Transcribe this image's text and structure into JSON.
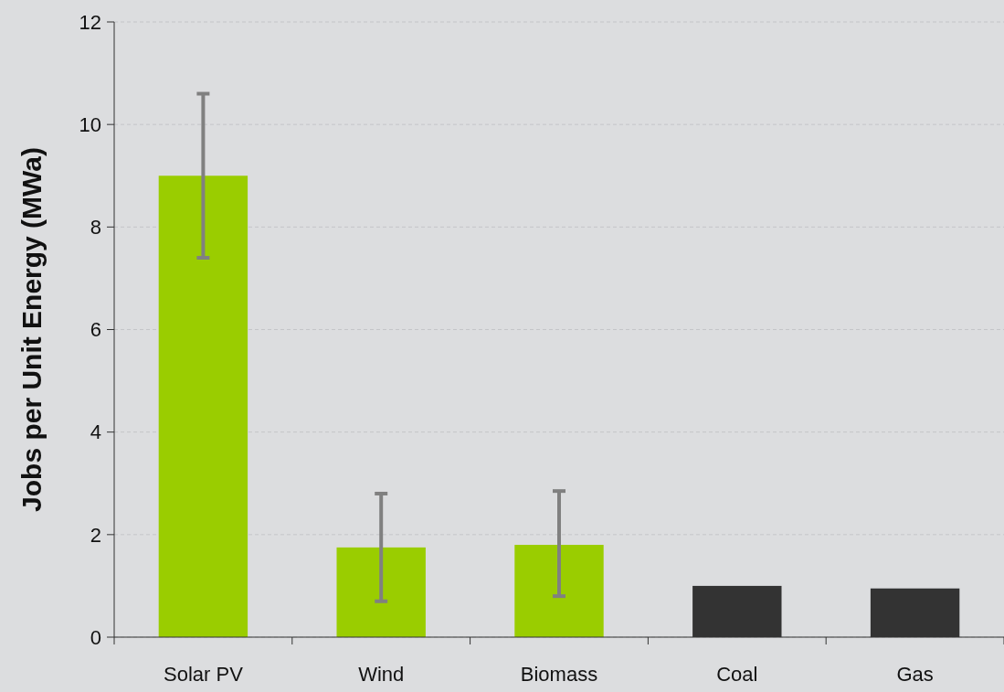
{
  "chart_data": {
    "type": "bar",
    "ylabel": "Jobs per Unit Energy (MWa)",
    "categories": [
      "Solar PV",
      "Wind",
      "Biomass",
      "Coal",
      "Gas"
    ],
    "values": [
      9.0,
      1.75,
      1.8,
      1.0,
      0.95
    ],
    "colors": [
      "#9acd00",
      "#9acd00",
      "#9acd00",
      "#333333",
      "#333333"
    ],
    "errors": [
      [
        7.4,
        10.6
      ],
      [
        0.7,
        2.8
      ],
      [
        0.8,
        2.85
      ],
      null,
      null
    ],
    "ylim": [
      0,
      12
    ],
    "yticks": [
      0,
      2,
      4,
      6,
      8,
      10,
      12
    ],
    "grid": "y"
  }
}
